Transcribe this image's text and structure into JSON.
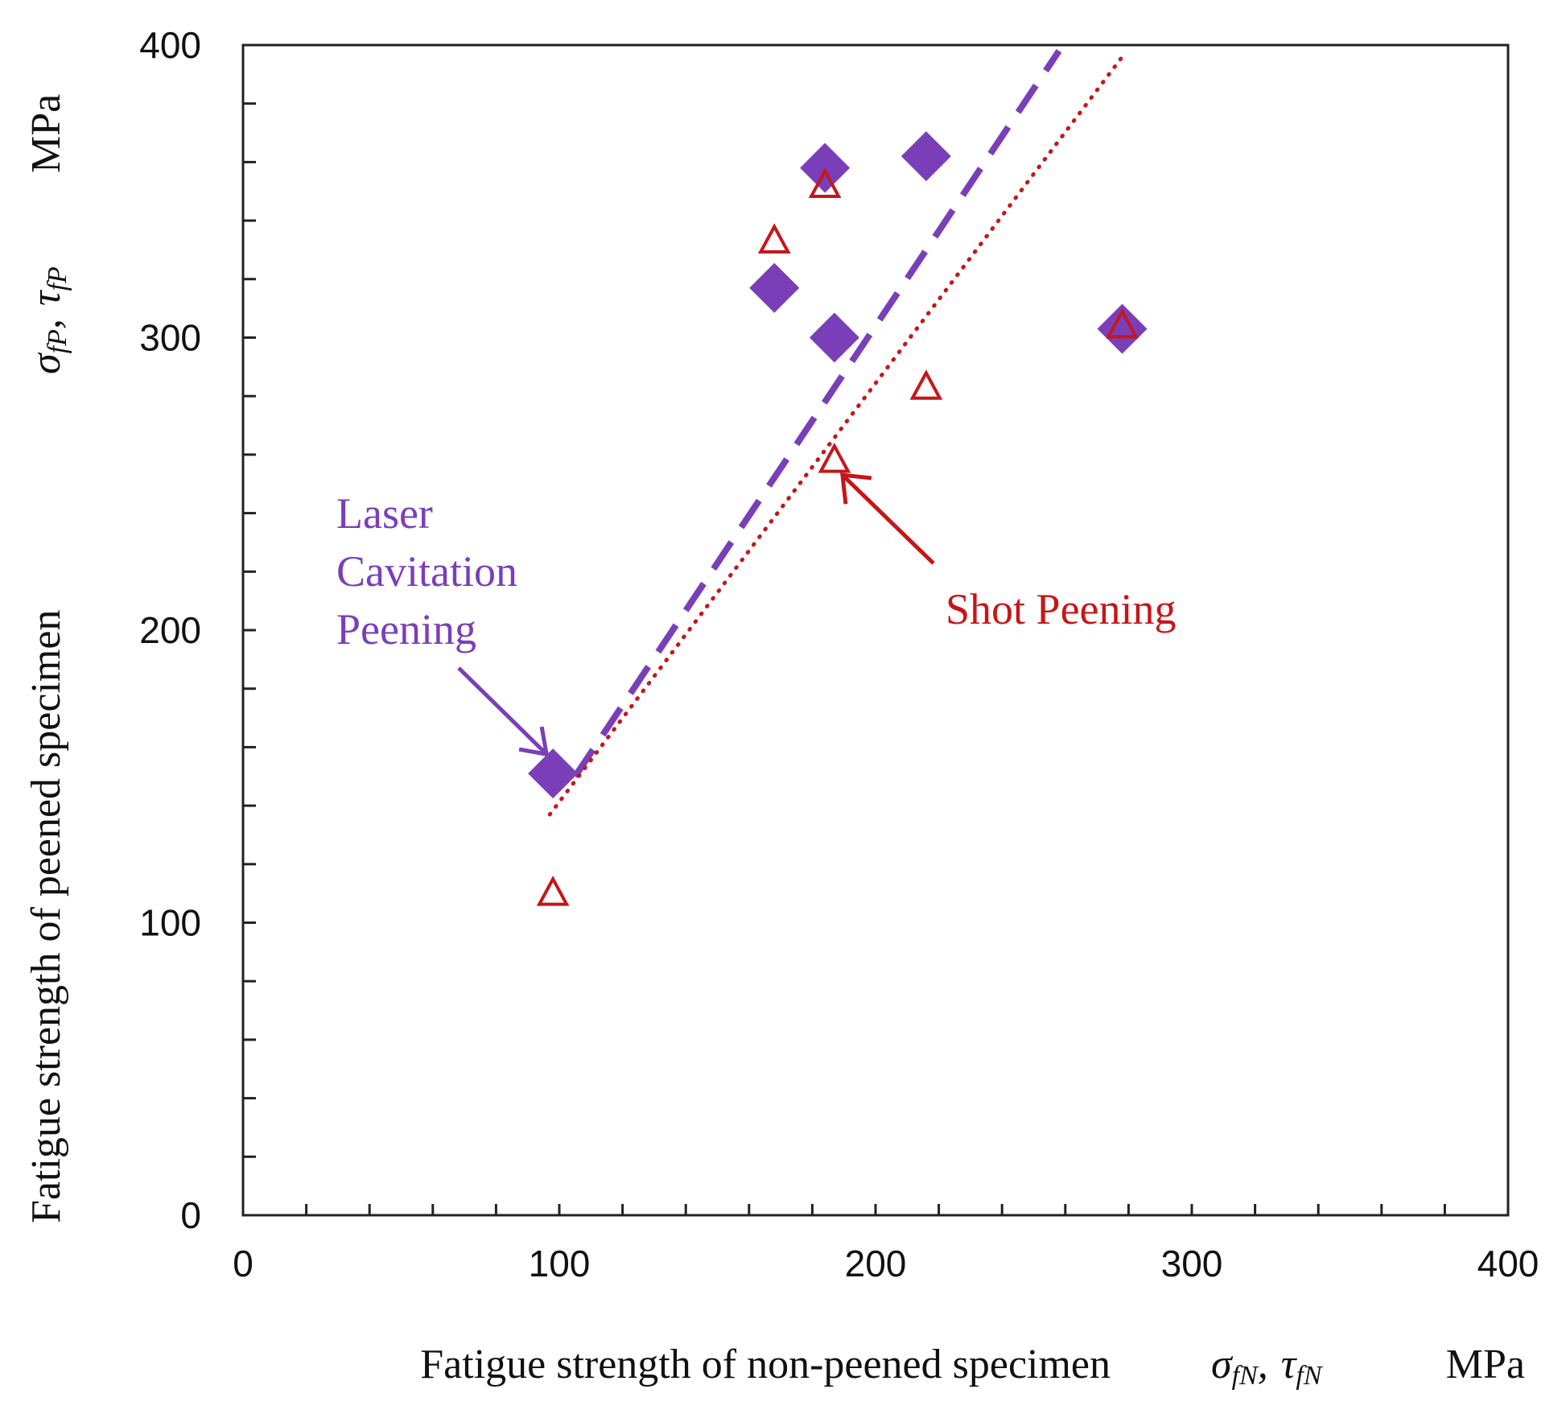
{
  "chart_data": {
    "type": "scatter",
    "xlim": [
      0,
      400
    ],
    "ylim": [
      0,
      400
    ],
    "x_ticks": [
      "0",
      "100",
      "200",
      "300",
      "400"
    ],
    "y_ticks": [
      "0",
      "100",
      "200",
      "300",
      "400"
    ],
    "xlabel": {
      "text": "Fatigue strength of non-peened specimen",
      "sym1": "σ",
      "sub1": "fN",
      "sep": ",",
      "sym2": "τ",
      "sub2": "fN",
      "unit": "MPa"
    },
    "ylabel": {
      "text": "Fatigue strength of peened specimen",
      "sym1": "σ",
      "sub1": "fP",
      "sep": ",",
      "sym2": "τ",
      "sub2": "fP",
      "unit": "MPa"
    },
    "series": [
      {
        "name": "Laser Cavitation Peening",
        "marker": "filled-diamond",
        "color": "#7a3fb8",
        "points": [
          [
            98,
            151
          ],
          [
            168,
            317
          ],
          [
            184,
            358
          ],
          [
            187,
            300
          ],
          [
            216,
            362
          ],
          [
            278,
            303
          ]
        ]
      },
      {
        "name": "Shot Peening",
        "marker": "open-triangle",
        "color": "#c4171a",
        "points": [
          [
            98,
            110
          ],
          [
            168,
            333
          ],
          [
            184,
            352
          ],
          [
            187,
            258
          ],
          [
            216,
            283
          ],
          [
            278,
            304
          ]
        ]
      }
    ],
    "fit_lines": [
      {
        "series": "Laser Cavitation Peening",
        "style": "dashed",
        "color": "#7a3fb8",
        "from": [
          105,
          150
        ],
        "to": [
          258,
          398
        ]
      },
      {
        "series": "Shot Peening",
        "style": "dotted",
        "color": "#c4171a",
        "from": [
          97,
          137
        ],
        "to": [
          278,
          396
        ]
      }
    ],
    "annotations": [
      {
        "series": "Laser Cavitation Peening",
        "lines": [
          "Laser",
          "Cavitation",
          "Peening"
        ],
        "color": "#7a3fb8"
      },
      {
        "series": "Shot Peening",
        "lines": [
          "Shot Peening"
        ],
        "color": "#c4171a"
      }
    ]
  }
}
